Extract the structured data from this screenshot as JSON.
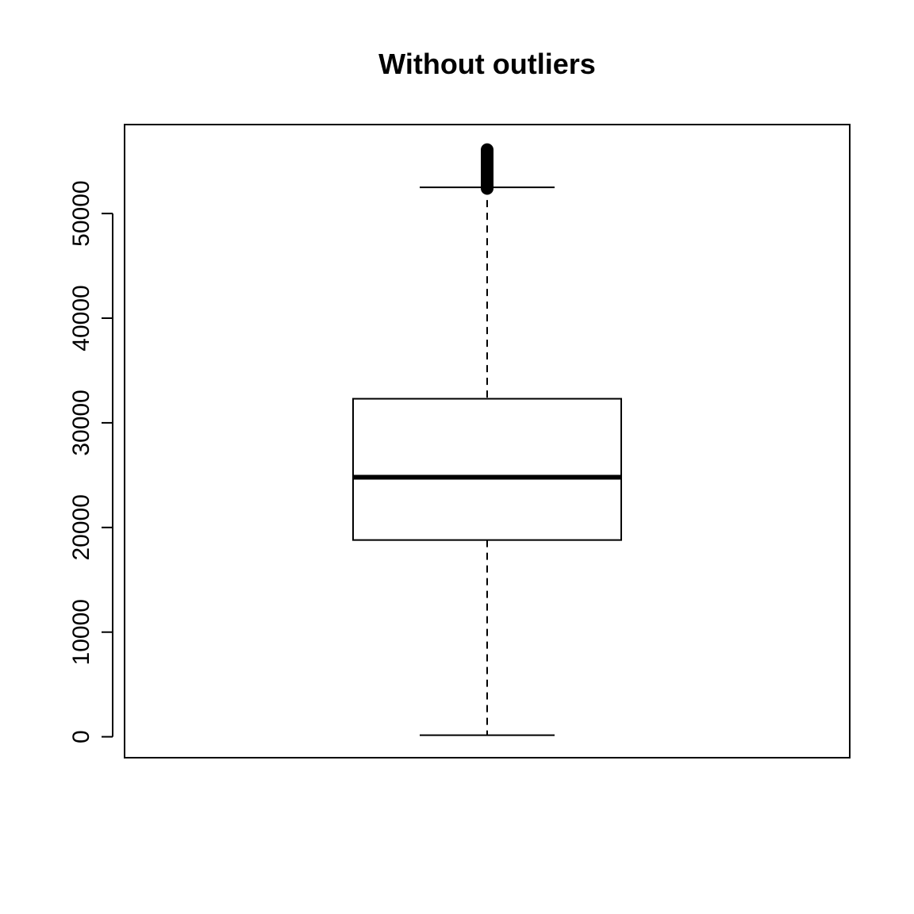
{
  "chart_data": {
    "type": "box",
    "title": "Without outliers",
    "xlabel": "",
    "ylabel": "",
    "ylim": [
      -2000,
      58500
    ],
    "yticks": [
      0,
      10000,
      20000,
      30000,
      40000,
      50000
    ],
    "ytick_labels": [
      "0",
      "10000",
      "20000",
      "30000",
      "40000",
      "50000"
    ],
    "boxes": [
      {
        "whisker_low": 150,
        "q1": 18800,
        "median": 24800,
        "q3": 32300,
        "whisker_high": 52500,
        "outlier_range": [
          52400,
          56100
        ]
      }
    ],
    "grid": false,
    "legend": "none",
    "colors": {
      "line": "#000000",
      "background": "#ffffff"
    }
  }
}
